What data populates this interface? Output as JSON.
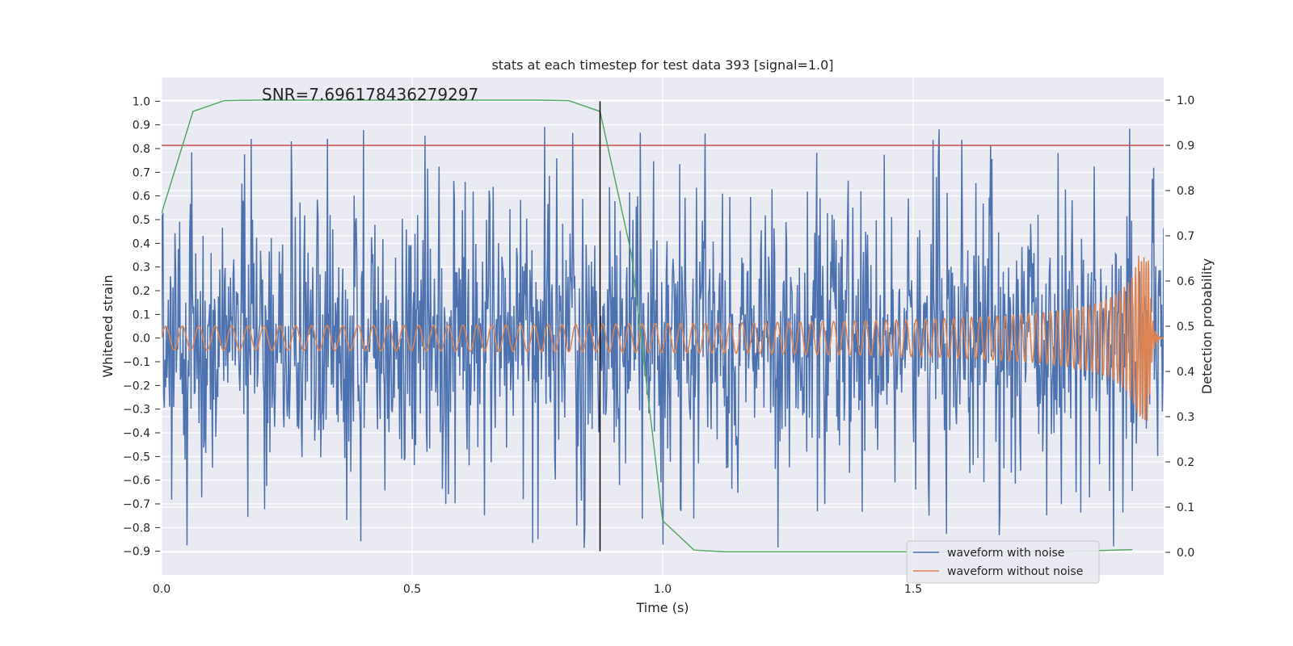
{
  "chart_data": {
    "type": "line",
    "title": "stats at each timestep for test data 393 [signal=1.0]",
    "xlabel": "Time (s)",
    "ylabel": "Whitened strain",
    "y2label": "Detection probability",
    "xlim": [
      0.0,
      2.0
    ],
    "ylim": [
      -1.0,
      1.1
    ],
    "y2lim": [
      -0.05,
      1.05
    ],
    "xticks": [
      0.0,
      0.5,
      1.0,
      1.5
    ],
    "xtick_labels": [
      "0.0",
      "0.5",
      "1.0",
      "1.5"
    ],
    "yticks": [
      1.0,
      0.9,
      0.8,
      0.7,
      0.6,
      0.5,
      0.4,
      0.3,
      0.2,
      0.1,
      0.0,
      -0.1,
      -0.2,
      -0.3,
      -0.4,
      -0.5,
      -0.6,
      -0.7,
      -0.8,
      -0.9
    ],
    "ytick_labels": [
      "1.0",
      "0.9",
      "0.8",
      "0.7",
      "0.6",
      "0.5",
      "0.4",
      "0.3",
      "0.2",
      "0.1",
      "0.0",
      "−0.1",
      "−0.2",
      "−0.3",
      "−0.4",
      "−0.5",
      "−0.6",
      "−0.7",
      "−0.8",
      "−0.9"
    ],
    "y2ticks": [
      0.0,
      0.1,
      0.2,
      0.3,
      0.4,
      0.5,
      0.6,
      0.7,
      0.8,
      0.9,
      1.0
    ],
    "y2tick_labels": [
      "0.0",
      "0.1",
      "0.2",
      "0.3",
      "0.4",
      "0.5",
      "0.6",
      "0.7",
      "0.8",
      "0.9",
      "1.0"
    ],
    "grid": true,
    "legend_position": "lower-right",
    "annotation": "SNR=7.696178436279297",
    "series": [
      {
        "name": "waveform with noise",
        "color": "#4c72b0",
        "axis": "left",
        "style": "noisy trace, roughly ±0.6 with spikes to about ±0.9",
        "t_range": [
          0.0,
          2.0
        ],
        "amplitude_typical": 0.35,
        "amplitude_peak": 0.99
      },
      {
        "name": "waveform without noise",
        "color": "#dd8452",
        "axis": "left",
        "style": "chirp: oscillation amplitude grows and frequency rises toward merger near t=1.97 s",
        "t_range": [
          0.0,
          2.0
        ],
        "f_start_hz": 30,
        "f_end_hz": 220,
        "amplitude_start": 0.03,
        "amplitude_peak": 0.35,
        "merger_time": 1.97
      },
      {
        "name": "",
        "color": "#55a868",
        "axis": "right",
        "x": [
          0.0,
          0.0625,
          0.125,
          0.1875,
          0.25,
          0.3125,
          0.375,
          0.4375,
          0.5,
          0.5625,
          0.625,
          0.6875,
          0.75,
          0.8125,
          0.875,
          0.9375,
          1.0,
          1.0625,
          1.125,
          1.1875,
          1.25,
          1.3125,
          1.375,
          1.4375,
          1.5,
          1.5625,
          1.625,
          1.6875,
          1.75,
          1.8125,
          1.875,
          1.9375
        ],
        "values": [
          0.75,
          0.975,
          0.999,
          1.0,
          1.0,
          1.0,
          1.0,
          1.0,
          1.0,
          1.0,
          1.0,
          1.0,
          1.0,
          0.999,
          0.975,
          0.66,
          0.07,
          0.005,
          0.001,
          0.001,
          0.001,
          0.001,
          0.001,
          0.001,
          0.001,
          0.001,
          0.001,
          0.001,
          0.001,
          0.002,
          0.004,
          0.006
        ]
      }
    ],
    "hlines": [
      {
        "axis": "right",
        "y": 0.9,
        "color": "#c44e52"
      }
    ],
    "vlines": [
      {
        "x": 0.875,
        "y_from": -0.9,
        "y_to": 1.0,
        "color": "#000000"
      }
    ]
  }
}
